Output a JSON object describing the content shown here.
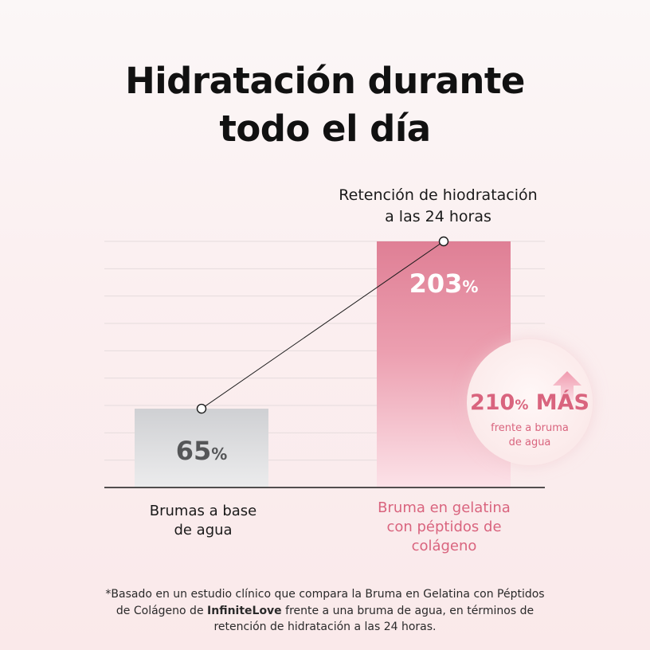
{
  "title_lines": [
    "Hidratación durante",
    "todo el día"
  ],
  "subtitle_lines": [
    "Retención de hiodratación",
    "a las 24 horas"
  ],
  "chart_data": {
    "type": "bar",
    "title": "Hidratación durante todo el día",
    "categories": [
      "Brumas a base de agua",
      "Bruma en gelatina con péptidos de colágeno"
    ],
    "category_label_lines": [
      [
        "Brumas a base",
        "de agua"
      ],
      [
        "Bruma en gelatina",
        "con péptidos de",
        "colágeno"
      ]
    ],
    "values": [
      65,
      203
    ],
    "value_unit": "%",
    "ylim": [
      0,
      203
    ],
    "grid": true,
    "bar_colors": [
      "#cfd0d3",
      "#df7f95"
    ],
    "connector_line": true
  },
  "callout": {
    "value": "210",
    "unit": "%",
    "word": "MÁS",
    "sub_lines": [
      "frente a bruma",
      "de agua"
    ],
    "icon": "up-arrow-icon",
    "color": "#d9647e"
  },
  "footnote": {
    "line1": "*Basado en un estudio clínico que compara la Bruma en Gelatina con Péptidos",
    "line2_pre": "de Colágeno de ",
    "brand": "InfiniteLove",
    "line2_post": " frente a una bruma de agua, en términos de",
    "line3": "retención de hidratación a las 24 horas."
  }
}
